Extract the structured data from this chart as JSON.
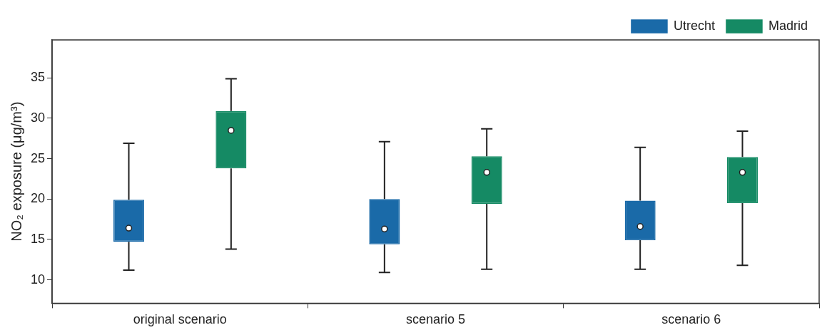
{
  "chart_data": {
    "type": "box",
    "ylabel": "NO₂ exposure (μg/m³)",
    "categories": [
      "original scenario",
      "scenario 5",
      "scenario 6"
    ],
    "series": [
      {
        "name": "Utrecht",
        "color": "#1a6aa8",
        "boxes": [
          {
            "low": 11.2,
            "q1": 14.7,
            "median": 16.4,
            "q3": 19.9,
            "high": 26.9
          },
          {
            "low": 10.9,
            "q1": 14.4,
            "median": 16.3,
            "q3": 20.0,
            "high": 27.1
          },
          {
            "low": 11.3,
            "q1": 14.9,
            "median": 16.6,
            "q3": 19.8,
            "high": 26.4
          }
        ]
      },
      {
        "name": "Madrid",
        "color": "#158a64",
        "boxes": [
          {
            "low": 13.8,
            "q1": 23.8,
            "median": 28.5,
            "q3": 30.9,
            "high": 34.9
          },
          {
            "low": 11.3,
            "q1": 19.4,
            "median": 23.3,
            "q3": 25.3,
            "high": 28.7
          },
          {
            "low": 11.8,
            "q1": 19.5,
            "median": 23.3,
            "q3": 25.2,
            "high": 28.4
          }
        ]
      }
    ],
    "ylim": [
      7.1,
      39.7
    ],
    "yticks": [
      10,
      15,
      20,
      25,
      30,
      35
    ],
    "grid": false,
    "legend": "top right"
  }
}
